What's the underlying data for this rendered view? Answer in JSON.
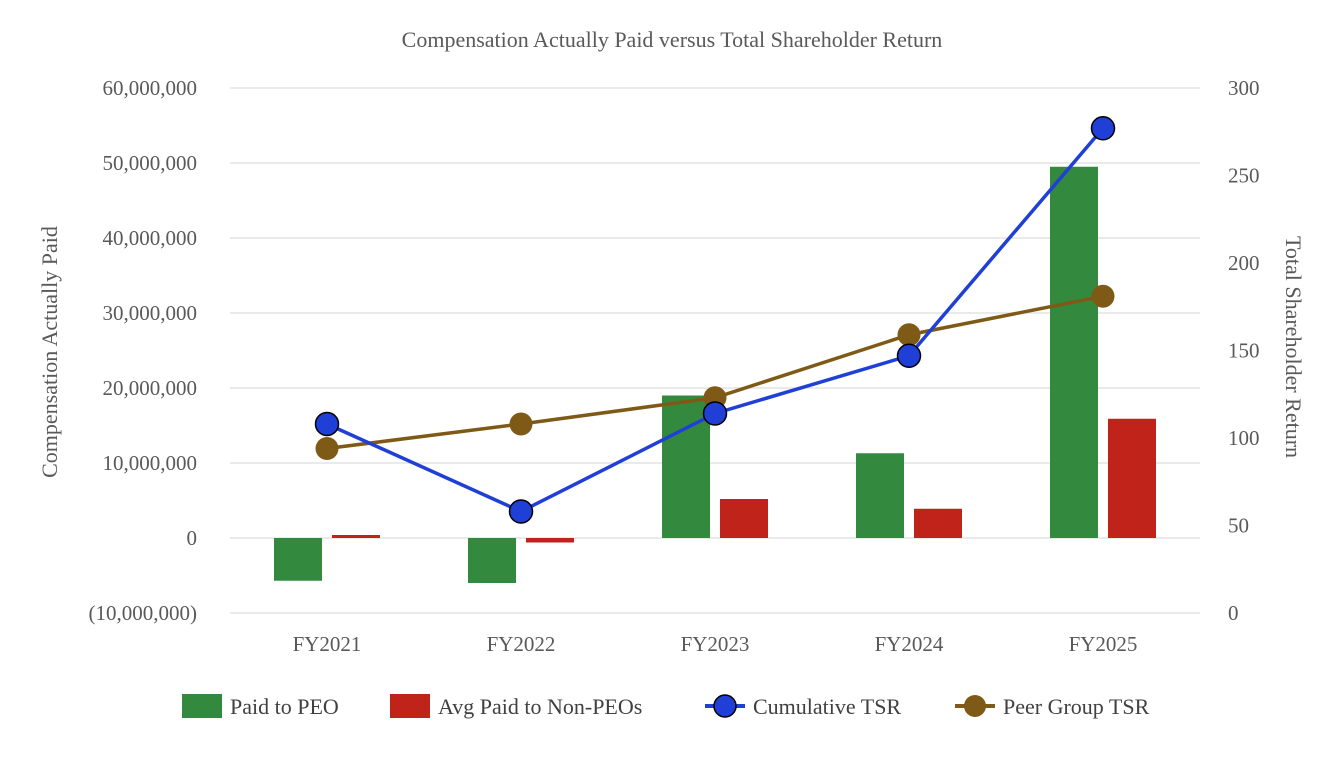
{
  "chart_data": {
    "type": "bar+line",
    "title": "Compensation Actually Paid versus Total Shareholder Return",
    "categories": [
      "FY2021",
      "FY2022",
      "FY2023",
      "FY2024",
      "FY2025"
    ],
    "y_left": {
      "label": "Compensation Actually Paid",
      "min": -10000000,
      "max": 60000000,
      "ticks": [
        60000000,
        50000000,
        40000000,
        30000000,
        20000000,
        10000000,
        0,
        -10000000
      ],
      "tick_labels": [
        "60,000,000",
        "50,000,000",
        "40,000,000",
        "30,000,000",
        "20,000,000",
        "10,000,000",
        "0",
        "(10,000,000)"
      ]
    },
    "y_right": {
      "label": "Total Shareholder Return",
      "min": 0,
      "max": 300,
      "ticks": [
        300,
        250,
        200,
        150,
        100,
        50,
        0
      ],
      "tick_labels": [
        "300",
        "250",
        "200",
        "150",
        "100",
        "50",
        "0"
      ]
    },
    "bar_series": [
      {
        "name": "Paid to PEO",
        "color": "#338a3e",
        "axis": "left",
        "values": [
          -5700000,
          -6000000,
          19000000,
          11300000,
          49500000
        ]
      },
      {
        "name": "Avg Paid to Non-PEOs",
        "color": "#c0231a",
        "axis": "left",
        "values": [
          400000,
          -600000,
          5200000,
          3900000,
          15900000
        ]
      }
    ],
    "line_series": [
      {
        "name": "Cumulative TSR",
        "color": "#1f3fd6",
        "marker_fill": "#1f3fd6",
        "axis": "right",
        "values": [
          108,
          58,
          114,
          147,
          277
        ]
      },
      {
        "name": "Peer Group TSR",
        "color": "#7f5a16",
        "marker_fill": "#7f5a16",
        "axis": "right",
        "values": [
          94,
          108,
          123,
          159,
          181
        ]
      }
    ],
    "legend": [
      "Paid to PEO",
      "Avg Paid to Non-PEOs",
      "Cumulative TSR",
      "Peer Group TSR"
    ],
    "legend_position": "bottom",
    "grid": true
  }
}
